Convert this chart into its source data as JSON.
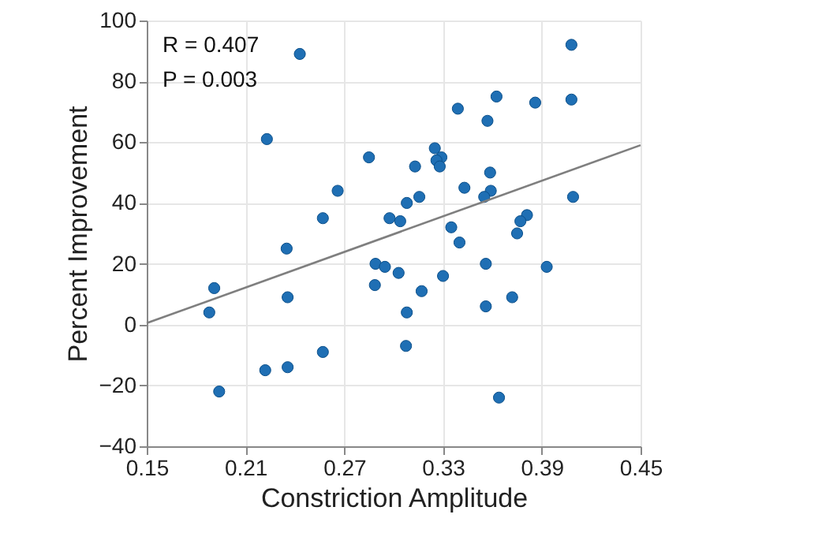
{
  "chart_data": {
    "type": "scatter",
    "xlabel": "Constriction Amplitude",
    "ylabel": "Percent Improvement",
    "annotations": [
      "R = 0.407",
      "P = 0.003"
    ],
    "xlim": [
      0.15,
      0.45
    ],
    "xticks": [
      0.15,
      0.21,
      0.27,
      0.33,
      0.39,
      0.45
    ],
    "ylim": [
      -40,
      100
    ],
    "yticks": [
      -40,
      -20,
      0,
      20,
      40,
      60,
      80,
      100
    ],
    "grid": true,
    "marker": "circle",
    "series": [
      {
        "color": "#1f6fb4",
        "x": [
          0.243,
          0.223,
          0.285,
          0.313,
          0.266,
          0.257,
          0.308,
          0.2975,
          0.304,
          0.408,
          0.408,
          0.3625,
          0.339,
          0.357,
          0.386,
          0.325,
          0.329,
          0.326,
          0.328,
          0.3586,
          0.343,
          0.359,
          0.355,
          0.3156,
          0.409,
          0.381,
          0.377,
          0.375,
          0.335,
          0.34,
          0.356,
          0.393,
          0.33,
          0.317,
          0.308,
          0.356,
          0.372,
          0.3075,
          0.364,
          0.235,
          0.191,
          0.188,
          0.2356,
          0.289,
          0.2947,
          0.303,
          0.2886,
          0.257,
          0.222,
          0.2356,
          0.194
        ],
        "values": [
          89,
          61,
          55,
          52,
          44,
          35,
          40,
          35,
          34,
          92,
          74,
          75,
          71,
          67,
          73,
          58,
          55,
          54,
          52,
          50,
          45,
          44,
          42,
          42,
          42,
          36,
          34,
          30,
          32,
          27,
          20,
          19,
          16,
          11,
          4,
          6,
          9,
          -7,
          -24,
          25,
          12,
          4,
          9,
          20,
          19,
          17,
          13,
          -9,
          -15,
          -14,
          -22
        ]
      },
      {
        "type": "line",
        "color": "#7f7f7f",
        "marker": "none",
        "x": [
          0.15,
          0.45
        ],
        "values": [
          0.5,
          59
        ]
      }
    ]
  }
}
